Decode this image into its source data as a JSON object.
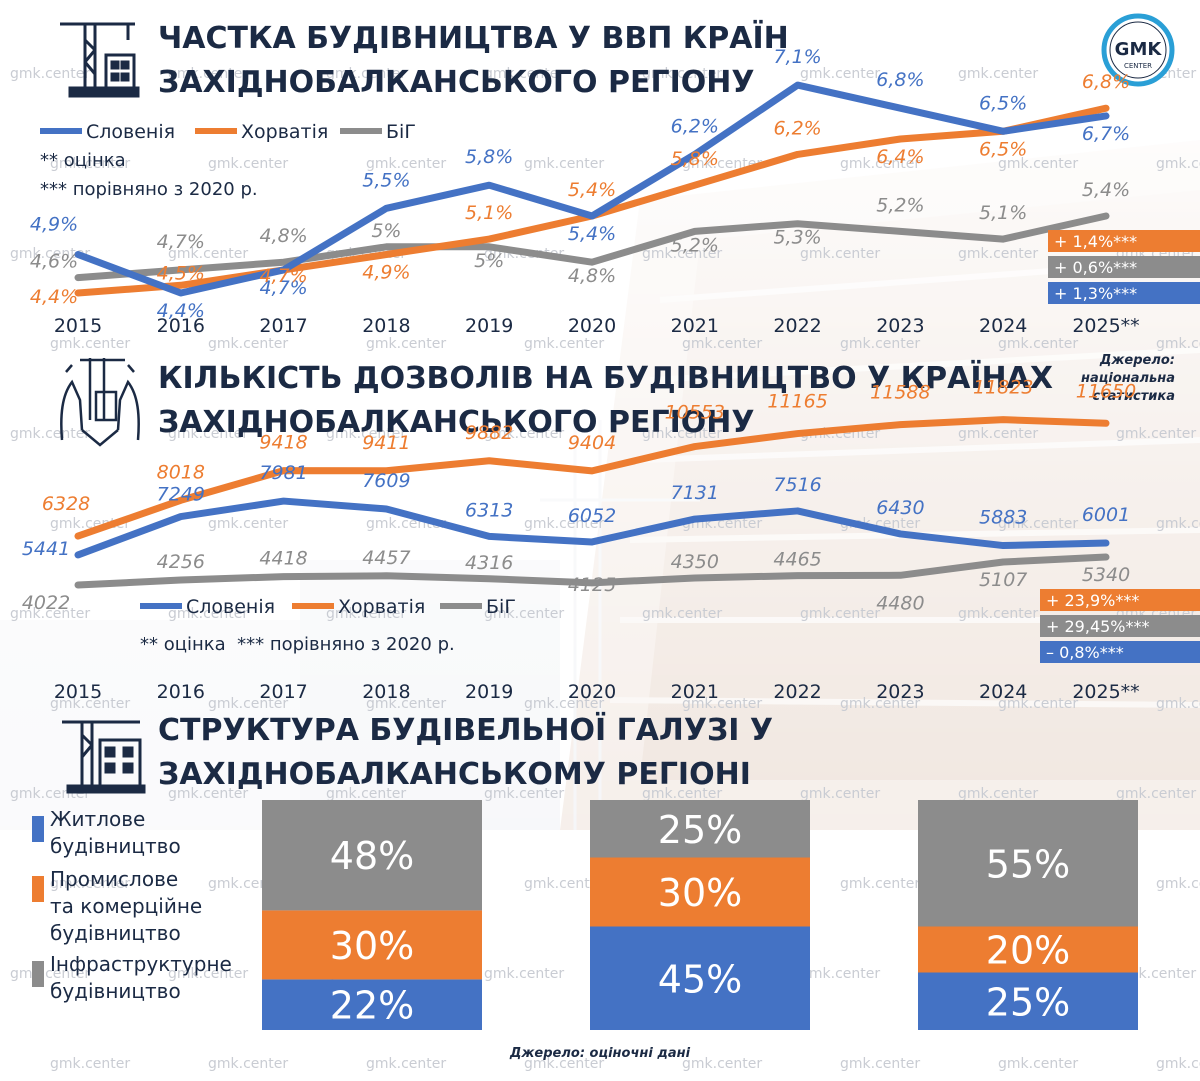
{
  "brand": {
    "logo_main": "GMK",
    "logo_sub": "CENTER",
    "watermark": "gmk.center"
  },
  "colors": {
    "slovenia": "#4472c4",
    "croatia": "#ed7d31",
    "bih": "#8c8c8c",
    "navy": "#1b2a44"
  },
  "legend": {
    "slovenia": "Словенія",
    "croatia": "Хорватія",
    "bih": "БіГ"
  },
  "notes": {
    "estimate": "** оцінка",
    "compared": "*** порівняно з 2020 р.",
    "combined": "** оцінка  *** порівняно з 2020 р."
  },
  "source_national": [
    "Джерело:",
    "національна",
    "статистика"
  ],
  "source_estimates": "Джерело: оціночні дані",
  "chart_data": [
    {
      "type": "line",
      "title": [
        "ЧАСТКА БУДІВНИЦТВА У ВВП КРАЇН",
        "ЗАХІДНОБАЛКАНСЬКОГО РЕГІОНУ"
      ],
      "categories": [
        "2015",
        "2016",
        "2017",
        "2018",
        "2019",
        "2020",
        "2021",
        "2022",
        "2023",
        "2024",
        "2025**"
      ],
      "series": [
        {
          "name": "Словенія",
          "values": [
            4.9,
            4.4,
            4.7,
            5.5,
            5.8,
            5.4,
            6.2,
            7.1,
            6.8,
            6.5,
            6.7
          ],
          "labels": [
            "4,9%",
            "4,4%",
            "4,7%",
            "5,5%",
            "5,8%",
            "5,4%",
            "6,2%",
            "7,1%",
            "6,8%",
            "6,5%",
            "6,7%"
          ]
        },
        {
          "name": "Хорватія",
          "values": [
            4.4,
            4.5,
            4.7,
            4.9,
            5.1,
            5.4,
            5.8,
            6.2,
            6.4,
            6.5,
            6.8
          ],
          "labels": [
            "4,4%",
            "4,5%",
            "4,7%",
            "4,9%",
            "5,1%",
            "5,4%",
            "5,8%",
            "6,2%",
            "6,4%",
            "6,5%",
            "6,8%"
          ]
        },
        {
          "name": "БіГ",
          "values": [
            4.6,
            4.7,
            4.8,
            5.0,
            5.0,
            4.8,
            5.2,
            5.3,
            5.2,
            5.1,
            5.4
          ],
          "labels": [
            "4,6%",
            "4,7%",
            "4,8%",
            "5%",
            "5%",
            "4,8%",
            "5,2%",
            "5,3%",
            "5,2%",
            "5,1%",
            "5,4%"
          ]
        }
      ],
      "changes": [
        {
          "series": "Хорватія",
          "text": "+ 1,4%***"
        },
        {
          "series": "БіГ",
          "text": "+ 0,6%***"
        },
        {
          "series": "Словенія",
          "text": "+ 1,3%***"
        }
      ]
    },
    {
      "type": "line",
      "title": [
        "КІЛЬКІСТЬ ДОЗВОЛІВ НА БУДІВНИЦТВО У КРАЇНАХ",
        "ЗАХІДНОБАЛКАНСЬКОГО РЕГІОНУ"
      ],
      "categories": [
        "2015",
        "2016",
        "2017",
        "2018",
        "2019",
        "2020",
        "2021",
        "2022",
        "2023",
        "2024",
        "2025**"
      ],
      "series": [
        {
          "name": "Словенія",
          "values": [
            5441,
            7249,
            7981,
            7609,
            6313,
            6052,
            7131,
            7516,
            6430,
            5883,
            6001
          ]
        },
        {
          "name": "Хорватія",
          "values": [
            6328,
            8018,
            9418,
            9411,
            9882,
            9404,
            10553,
            11165,
            11588,
            11823,
            11650
          ]
        },
        {
          "name": "БіГ",
          "values": [
            4022,
            4256,
            4418,
            4457,
            4316,
            4125,
            4350,
            4465,
            4480,
            5107,
            5340
          ]
        }
      ],
      "changes": [
        {
          "series": "Хорватія",
          "text": "+ 23,9%***"
        },
        {
          "series": "БіГ",
          "text": "+ 29,45%***"
        },
        {
          "series": "Словенія",
          "text": "– 0,8%***"
        }
      ]
    },
    {
      "type": "bar",
      "stacked": true,
      "title": [
        "СТРУКТУРА БУДІВЕЛЬНОЇ ГАЛУЗІ У",
        "ЗАХІДНОБАЛКАНСЬКОМУ РЕГІОНІ"
      ],
      "legend": [
        {
          "name": "Житлове будівництво",
          "lines": [
            "Житлове",
            "будівництво"
          ],
          "color": "#4472c4"
        },
        {
          "name": "Промислове та комерційне будівництво",
          "lines": [
            "Промислове",
            "та комерційне",
            "будівництво"
          ],
          "color": "#ed7d31"
        },
        {
          "name": "Інфраструктурне будівництво",
          "lines": [
            "Інфраструктурне",
            "будівництво"
          ],
          "color": "#8c8c8c"
        }
      ],
      "bars": [
        {
          "residential": 22,
          "industrial": 30,
          "infrastructure": 48
        },
        {
          "residential": 45,
          "industrial": 30,
          "infrastructure": 25
        },
        {
          "residential": 25,
          "industrial": 20,
          "infrastructure": 55
        }
      ]
    }
  ]
}
